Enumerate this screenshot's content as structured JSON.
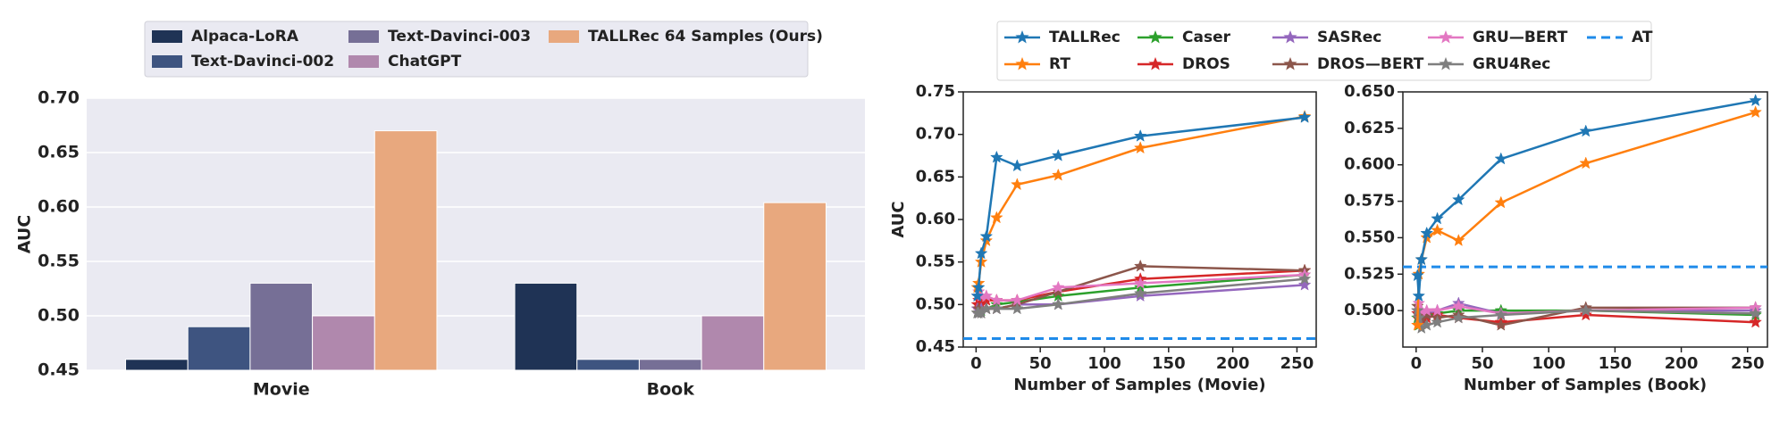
{
  "chart_data": [
    {
      "type": "bar",
      "title": "",
      "xlabel": "",
      "ylabel": "AUC",
      "ylim": [
        0.45,
        0.7
      ],
      "yticks": [
        "0.45",
        "0.50",
        "0.55",
        "0.60",
        "0.65",
        "0.70"
      ],
      "categories": [
        "Movie",
        "Book"
      ],
      "grid": true,
      "legend": "top-center",
      "series": [
        {
          "name": "Alpaca-LoRA",
          "values": [
            0.46,
            0.53
          ],
          "color": "#1f3355"
        },
        {
          "name": "Text-Davinci-002",
          "values": [
            0.49,
            0.46
          ],
          "color": "#3e5480"
        },
        {
          "name": "Text-Davinci-003",
          "values": [
            0.53,
            0.46
          ],
          "color": "#766f96"
        },
        {
          "name": "ChatGPT",
          "values": [
            0.5,
            0.5
          ],
          "color": "#b088ad"
        },
        {
          "name": "TALLRec 64 Samples (Ours)",
          "values": [
            0.67,
            0.604
          ],
          "color": "#e8a87e"
        }
      ]
    },
    {
      "type": "line",
      "title": "",
      "xlabel": "Number of Samples (Movie)",
      "ylabel": "AUC",
      "xlim": [
        -10,
        265
      ],
      "ylim": [
        0.45,
        0.75
      ],
      "xticks": [
        "0",
        "50",
        "100",
        "150",
        "200",
        "250"
      ],
      "yticks": [
        "0.45",
        "0.50",
        "0.55",
        "0.60",
        "0.65",
        "0.70",
        "0.75"
      ],
      "grid": false,
      "x": [
        1,
        2,
        4,
        8,
        16,
        32,
        64,
        128,
        256
      ],
      "series": [
        {
          "name": "TALLRec",
          "color": "#1f77b4",
          "values": [
            0.51,
            0.52,
            0.56,
            0.58,
            0.673,
            0.663,
            0.675,
            0.698,
            0.72
          ]
        },
        {
          "name": "RT",
          "color": "#ff7f0e",
          "values": [
            0.52,
            0.525,
            0.55,
            0.575,
            0.602,
            0.641,
            0.652,
            0.684,
            0.721
          ]
        },
        {
          "name": "Caser",
          "color": "#2ca02c",
          "values": [
            0.49,
            0.495,
            0.493,
            0.495,
            0.5,
            0.503,
            0.51,
            0.52,
            0.535
          ]
        },
        {
          "name": "DROS",
          "color": "#d62728",
          "values": [
            0.5,
            0.505,
            0.5,
            0.505,
            0.505,
            0.505,
            0.515,
            0.53,
            0.54
          ]
        },
        {
          "name": "SASRec",
          "color": "#9467bd",
          "values": [
            0.495,
            0.49,
            0.495,
            0.495,
            0.495,
            0.5,
            0.5,
            0.51,
            0.523
          ]
        },
        {
          "name": "DROS—BERT",
          "color": "#8c564b",
          "values": [
            0.49,
            0.495,
            0.49,
            0.495,
            0.495,
            0.5,
            0.515,
            0.545,
            0.54
          ]
        },
        {
          "name": "GRU—BERT",
          "color": "#e377c2",
          "values": [
            0.51,
            0.515,
            0.51,
            0.51,
            0.505,
            0.505,
            0.52,
            0.525,
            0.535
          ]
        },
        {
          "name": "GRU4Rec",
          "color": "#7f7f7f",
          "values": [
            0.49,
            0.49,
            0.49,
            0.495,
            0.495,
            0.495,
            0.5,
            0.513,
            0.53
          ]
        }
      ],
      "reference_lines": [
        {
          "name": "AT",
          "value": 0.46,
          "color": "#1f8bea",
          "style": "dashed"
        }
      ]
    },
    {
      "type": "line",
      "title": "",
      "xlabel": "Number of Samples (Book)",
      "ylabel": "",
      "xlim": [
        -10,
        265
      ],
      "ylim": [
        0.475,
        0.65
      ],
      "xticks": [
        "0",
        "50",
        "100",
        "150",
        "200",
        "250"
      ],
      "yticks": [
        "0.500",
        "0.525",
        "0.550",
        "0.575",
        "0.600",
        "0.625",
        "0.650"
      ],
      "grid": false,
      "x": [
        1,
        2,
        4,
        8,
        16,
        32,
        64,
        128,
        256
      ],
      "series": [
        {
          "name": "TALLRec",
          "color": "#1f77b4",
          "values": [
            0.524,
            0.51,
            0.535,
            0.553,
            0.563,
            0.576,
            0.604,
            0.623,
            0.644
          ]
        },
        {
          "name": "RT",
          "color": "#ff7f0e",
          "values": [
            0.49,
            0.525,
            0.535,
            0.55,
            0.555,
            0.548,
            0.574,
            0.601,
            0.636
          ]
        },
        {
          "name": "Caser",
          "color": "#2ca02c",
          "values": [
            0.495,
            0.49,
            0.495,
            0.497,
            0.498,
            0.5,
            0.5,
            0.5,
            0.497
          ]
        },
        {
          "name": "DROS",
          "color": "#d62728",
          "values": [
            0.498,
            0.495,
            0.493,
            0.495,
            0.497,
            0.495,
            0.492,
            0.497,
            0.492
          ]
        },
        {
          "name": "SASRec",
          "color": "#9467bd",
          "values": [
            0.5,
            0.5,
            0.5,
            0.498,
            0.5,
            0.505,
            0.498,
            0.5,
            0.5
          ]
        },
        {
          "name": "DROS—BERT",
          "color": "#8c564b",
          "values": [
            0.503,
            0.497,
            0.495,
            0.497,
            0.495,
            0.497,
            0.49,
            0.502,
            0.502
          ]
        },
        {
          "name": "GRU—BERT",
          "color": "#e377c2",
          "values": [
            0.5,
            0.505,
            0.5,
            0.5,
            0.5,
            0.503,
            0.498,
            0.5,
            0.502
          ]
        },
        {
          "name": "GRU4Rec",
          "color": "#7f7f7f",
          "values": [
            0.5,
            0.495,
            0.488,
            0.49,
            0.492,
            0.495,
            0.497,
            0.5,
            0.498
          ]
        }
      ],
      "reference_lines": [
        {
          "name": "AT",
          "value": 0.53,
          "color": "#1f8bea",
          "style": "dashed"
        }
      ]
    }
  ]
}
